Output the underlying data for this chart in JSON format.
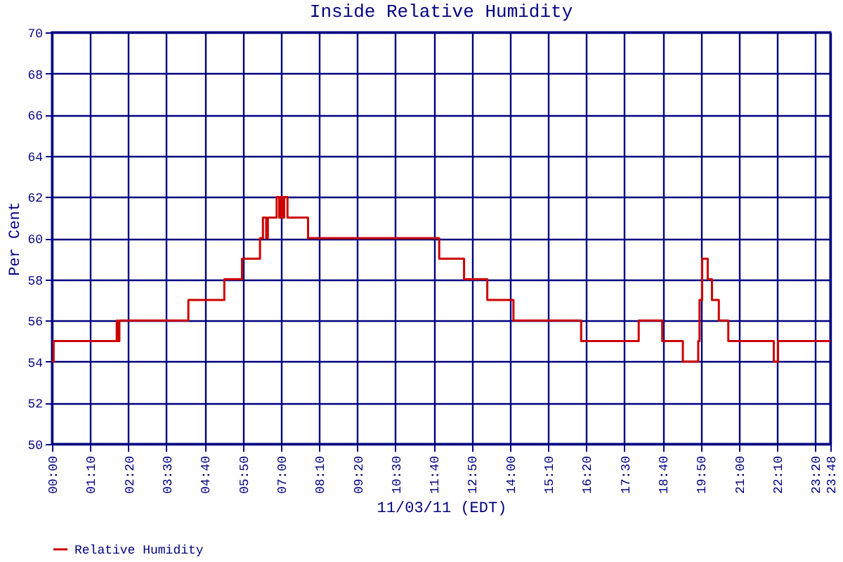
{
  "chart_data": {
    "type": "step",
    "title": "Inside Relative Humidity",
    "xlabel": "11/03/11 (EDT)",
    "ylabel": "Per Cent",
    "x": [
      0,
      0.05,
      1.98,
      2.0,
      2.06,
      4.17,
      5.27,
      5.81,
      6.36,
      6.45,
      6.55,
      6.6,
      6.87,
      6.95,
      7.0,
      7.05,
      7.1,
      7.2,
      7.83,
      11.84,
      12.6,
      13.31,
      14.11,
      16.18,
      17.94,
      18.66,
      19.29,
      19.76,
      19.8,
      19.88,
      20.05,
      20.18,
      20.39,
      20.68,
      22.07,
      22.2,
      23.8
    ],
    "series": [
      {
        "name": "Relative Humidity",
        "color": "#cc0000",
        "values": [
          54,
          55,
          56,
          55,
          56,
          57,
          58,
          59,
          60,
          61,
          60,
          61,
          62,
          61,
          62,
          61,
          62,
          61,
          60,
          59,
          58,
          57,
          56,
          55,
          56,
          55,
          54,
          55,
          57,
          59,
          58,
          57,
          56,
          55,
          54,
          55,
          55
        ]
      }
    ],
    "xlim": [
      0,
      23.8
    ],
    "xticks": [
      {
        "value": 0,
        "label": "00:00"
      },
      {
        "value": 1.1667,
        "label": "01:10"
      },
      {
        "value": 2.3333,
        "label": "02:20"
      },
      {
        "value": 3.5,
        "label": "03:30"
      },
      {
        "value": 4.6667,
        "label": "04:40"
      },
      {
        "value": 5.8333,
        "label": "05:50"
      },
      {
        "value": 7,
        "label": "07:00"
      },
      {
        "value": 8.1667,
        "label": "08:10"
      },
      {
        "value": 9.3333,
        "label": "09:20"
      },
      {
        "value": 10.5,
        "label": "10:30"
      },
      {
        "value": 11.6667,
        "label": "11:40"
      },
      {
        "value": 12.8333,
        "label": "12:50"
      },
      {
        "value": 14,
        "label": "14:00"
      },
      {
        "value": 15.1667,
        "label": "15:10"
      },
      {
        "value": 16.3333,
        "label": "16:20"
      },
      {
        "value": 17.5,
        "label": "17:30"
      },
      {
        "value": 18.6667,
        "label": "18:40"
      },
      {
        "value": 19.8333,
        "label": "19:50"
      },
      {
        "value": 21,
        "label": "21:00"
      },
      {
        "value": 22.1667,
        "label": "22:10"
      },
      {
        "value": 23.3333,
        "label": "23:20"
      },
      {
        "value": 23.8,
        "label": "23:48"
      }
    ],
    "ylim": [
      50,
      70
    ],
    "yticks": [
      50,
      52,
      54,
      56,
      58,
      60,
      62,
      64,
      66,
      68,
      70
    ],
    "grid": true,
    "legend": "bottom",
    "line_style": "solid",
    "marker": "none"
  }
}
